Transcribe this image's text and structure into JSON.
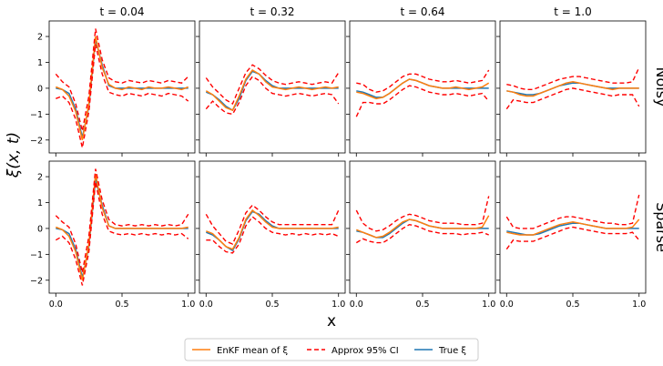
{
  "figure": {
    "xlabel": "x",
    "ylabel": "ξ(x, t)",
    "column_titles": [
      "t = 0.04",
      "t = 0.32",
      "t = 0.64",
      "t = 1.0"
    ],
    "row_labels": [
      "Noisy",
      "Sparse"
    ],
    "xticks": [
      0.0,
      0.5,
      1.0
    ],
    "xtick_labels": [
      "0.0",
      "0.5",
      "1.0"
    ],
    "yticks": [
      -2,
      -1,
      0,
      1,
      2
    ],
    "ytick_labels": [
      "−2",
      "−1",
      "0",
      "1",
      "2"
    ],
    "xlim": [
      -0.05,
      1.05
    ],
    "ylim": [
      -2.5,
      2.6
    ]
  },
  "legend": {
    "items": [
      {
        "key": "enkf",
        "label": "EnKF mean of ξ",
        "color": "#ff7f0e",
        "style": "solid"
      },
      {
        "key": "ci",
        "label": "Approx 95% CI",
        "color": "#ff0000",
        "style": "dashed"
      },
      {
        "key": "true",
        "label": "True ξ",
        "color": "#1f77b4",
        "style": "solid"
      }
    ]
  },
  "chart_data": {
    "type": "line",
    "x": [
      0.0,
      0.05,
      0.1,
      0.15,
      0.2,
      0.25,
      0.3,
      0.35,
      0.4,
      0.45,
      0.5,
      0.55,
      0.6,
      0.65,
      0.7,
      0.75,
      0.8,
      0.85,
      0.9,
      0.95,
      1.0
    ],
    "panels": [
      {
        "row": "Noisy",
        "t": "t = 0.04",
        "true": [
          0.0,
          -0.05,
          -0.2,
          -0.8,
          -1.9,
          -0.7,
          1.9,
          0.9,
          0.1,
          0.0,
          0.0,
          0.0,
          0.0,
          0.0,
          0.0,
          0.0,
          0.0,
          0.0,
          0.0,
          0.0,
          0.0
        ],
        "mean": [
          0.05,
          -0.05,
          -0.3,
          -0.9,
          -2.0,
          -0.6,
          2.0,
          0.8,
          0.15,
          0.0,
          -0.05,
          0.05,
          0.0,
          -0.05,
          0.05,
          0.0,
          0.0,
          0.05,
          0.0,
          -0.05,
          0.05
        ],
        "upper": [
          0.55,
          0.25,
          0.05,
          -0.6,
          -1.65,
          -0.3,
          2.3,
          1.1,
          0.4,
          0.25,
          0.2,
          0.3,
          0.25,
          0.2,
          0.3,
          0.25,
          0.2,
          0.3,
          0.25,
          0.2,
          0.45
        ],
        "lower": [
          -0.4,
          -0.3,
          -0.55,
          -1.2,
          -2.3,
          -0.9,
          1.7,
          0.55,
          -0.15,
          -0.25,
          -0.3,
          -0.2,
          -0.25,
          -0.3,
          -0.2,
          -0.25,
          -0.3,
          -0.2,
          -0.25,
          -0.3,
          -0.5
        ]
      },
      {
        "row": "Noisy",
        "t": "t = 0.32",
        "true": [
          -0.15,
          -0.25,
          -0.45,
          -0.7,
          -0.85,
          -0.4,
          0.3,
          0.65,
          0.55,
          0.3,
          0.1,
          0.0,
          0.0,
          0.0,
          0.0,
          0.0,
          0.0,
          0.0,
          0.0,
          0.0,
          0.0
        ],
        "mean": [
          -0.1,
          -0.25,
          -0.5,
          -0.75,
          -0.85,
          -0.3,
          0.35,
          0.7,
          0.55,
          0.25,
          0.05,
          0.0,
          -0.05,
          0.0,
          0.05,
          0.0,
          -0.05,
          0.0,
          0.05,
          0.0,
          0.05
        ],
        "upper": [
          0.4,
          0.05,
          -0.2,
          -0.45,
          -0.6,
          0.0,
          0.6,
          0.9,
          0.75,
          0.5,
          0.3,
          0.2,
          0.15,
          0.2,
          0.25,
          0.2,
          0.15,
          0.2,
          0.25,
          0.2,
          0.6
        ],
        "lower": [
          -0.8,
          -0.5,
          -0.75,
          -0.95,
          -1.0,
          -0.55,
          0.1,
          0.45,
          0.3,
          0.0,
          -0.2,
          -0.25,
          -0.3,
          -0.25,
          -0.2,
          -0.25,
          -0.3,
          -0.25,
          -0.2,
          -0.25,
          -0.6
        ]
      },
      {
        "row": "Noisy",
        "t": "t = 0.64",
        "true": [
          -0.1,
          -0.15,
          -0.25,
          -0.35,
          -0.35,
          -0.2,
          0.0,
          0.2,
          0.35,
          0.3,
          0.2,
          0.1,
          0.05,
          0.0,
          0.0,
          0.0,
          0.0,
          0.0,
          0.0,
          0.0,
          0.0
        ],
        "mean": [
          -0.15,
          -0.2,
          -0.3,
          -0.4,
          -0.35,
          -0.2,
          0.0,
          0.2,
          0.35,
          0.3,
          0.2,
          0.1,
          0.05,
          0.0,
          0.0,
          0.05,
          0.0,
          -0.05,
          0.0,
          0.05,
          0.2
        ],
        "upper": [
          0.2,
          0.15,
          -0.05,
          -0.15,
          -0.1,
          0.05,
          0.25,
          0.45,
          0.55,
          0.55,
          0.45,
          0.35,
          0.3,
          0.25,
          0.25,
          0.3,
          0.25,
          0.2,
          0.25,
          0.3,
          0.7
        ],
        "lower": [
          -1.1,
          -0.55,
          -0.55,
          -0.6,
          -0.6,
          -0.45,
          -0.25,
          -0.05,
          0.1,
          0.05,
          -0.05,
          -0.15,
          -0.2,
          -0.25,
          -0.25,
          -0.2,
          -0.25,
          -0.3,
          -0.25,
          -0.2,
          -0.5
        ]
      },
      {
        "row": "Noisy",
        "t": "t = 1.0",
        "true": [
          -0.1,
          -0.15,
          -0.2,
          -0.25,
          -0.25,
          -0.2,
          -0.1,
          0.0,
          0.1,
          0.15,
          0.2,
          0.2,
          0.15,
          0.1,
          0.05,
          0.0,
          0.0,
          0.0,
          0.0,
          0.0,
          0.0
        ],
        "mean": [
          -0.1,
          -0.15,
          -0.25,
          -0.3,
          -0.3,
          -0.2,
          -0.1,
          0.0,
          0.1,
          0.2,
          0.25,
          0.2,
          0.15,
          0.1,
          0.05,
          0.0,
          -0.05,
          0.0,
          0.0,
          0.0,
          0.0
        ],
        "upper": [
          0.15,
          0.1,
          0.0,
          -0.05,
          -0.05,
          0.05,
          0.15,
          0.25,
          0.35,
          0.4,
          0.45,
          0.45,
          0.4,
          0.35,
          0.3,
          0.25,
          0.2,
          0.2,
          0.2,
          0.25,
          0.8
        ],
        "lower": [
          -0.8,
          -0.45,
          -0.5,
          -0.55,
          -0.55,
          -0.45,
          -0.35,
          -0.25,
          -0.15,
          -0.05,
          0.0,
          -0.05,
          -0.1,
          -0.15,
          -0.2,
          -0.25,
          -0.3,
          -0.25,
          -0.25,
          -0.25,
          -0.7
        ]
      },
      {
        "row": "Sparse",
        "t": "t = 0.04",
        "true": [
          0.0,
          -0.05,
          -0.2,
          -0.8,
          -1.9,
          -0.7,
          1.9,
          0.9,
          0.1,
          0.0,
          0.0,
          0.0,
          0.0,
          0.0,
          0.0,
          0.0,
          0.0,
          0.0,
          0.0,
          0.0,
          0.0
        ],
        "mean": [
          0.05,
          -0.05,
          -0.3,
          -0.9,
          -2.0,
          -0.6,
          2.1,
          0.8,
          0.1,
          0.0,
          0.0,
          0.0,
          0.0,
          0.0,
          0.0,
          0.0,
          0.0,
          0.0,
          0.0,
          0.0,
          0.05
        ],
        "upper": [
          0.5,
          0.25,
          0.05,
          -0.6,
          -1.7,
          -0.3,
          2.3,
          1.1,
          0.35,
          0.15,
          0.1,
          0.15,
          0.1,
          0.15,
          0.1,
          0.15,
          0.1,
          0.15,
          0.1,
          0.15,
          0.55
        ],
        "lower": [
          -0.45,
          -0.3,
          -0.55,
          -1.2,
          -2.2,
          -0.9,
          1.8,
          0.55,
          -0.1,
          -0.2,
          -0.25,
          -0.2,
          -0.25,
          -0.2,
          -0.25,
          -0.2,
          -0.25,
          -0.2,
          -0.25,
          -0.2,
          -0.4
        ]
      },
      {
        "row": "Sparse",
        "t": "t = 0.32",
        "true": [
          -0.15,
          -0.25,
          -0.45,
          -0.7,
          -0.85,
          -0.4,
          0.3,
          0.65,
          0.55,
          0.3,
          0.1,
          0.0,
          0.0,
          0.0,
          0.0,
          0.0,
          0.0,
          0.0,
          0.0,
          0.0,
          0.0
        ],
        "mean": [
          -0.1,
          -0.2,
          -0.45,
          -0.7,
          -0.8,
          -0.35,
          0.35,
          0.7,
          0.5,
          0.25,
          0.05,
          0.0,
          0.0,
          0.0,
          0.0,
          0.0,
          0.0,
          0.0,
          0.0,
          0.0,
          0.05
        ],
        "upper": [
          0.55,
          0.1,
          -0.2,
          -0.5,
          -0.6,
          -0.05,
          0.6,
          0.9,
          0.7,
          0.45,
          0.25,
          0.15,
          0.15,
          0.15,
          0.15,
          0.15,
          0.15,
          0.15,
          0.15,
          0.15,
          0.7
        ],
        "lower": [
          -0.45,
          -0.45,
          -0.7,
          -0.9,
          -0.95,
          -0.6,
          0.1,
          0.45,
          0.25,
          0.0,
          -0.15,
          -0.2,
          -0.25,
          -0.2,
          -0.25,
          -0.2,
          -0.25,
          -0.2,
          -0.25,
          -0.2,
          -0.3
        ]
      },
      {
        "row": "Sparse",
        "t": "t = 0.64",
        "true": [
          -0.1,
          -0.15,
          -0.25,
          -0.35,
          -0.35,
          -0.2,
          0.0,
          0.2,
          0.35,
          0.3,
          0.2,
          0.1,
          0.05,
          0.0,
          0.0,
          0.0,
          0.0,
          0.0,
          0.0,
          0.0,
          0.0
        ],
        "mean": [
          -0.05,
          -0.15,
          -0.25,
          -0.35,
          -0.3,
          -0.15,
          0.05,
          0.25,
          0.35,
          0.3,
          0.2,
          0.1,
          0.05,
          0.0,
          0.0,
          0.0,
          0.0,
          0.0,
          0.0,
          0.05,
          0.5
        ],
        "upper": [
          0.7,
          0.2,
          0.0,
          -0.1,
          -0.05,
          0.1,
          0.3,
          0.45,
          0.55,
          0.5,
          0.4,
          0.3,
          0.25,
          0.2,
          0.2,
          0.2,
          0.15,
          0.15,
          0.15,
          0.2,
          1.25
        ],
        "lower": [
          -0.55,
          -0.4,
          -0.5,
          -0.55,
          -0.55,
          -0.4,
          -0.2,
          0.0,
          0.15,
          0.1,
          0.0,
          -0.1,
          -0.15,
          -0.2,
          -0.2,
          -0.2,
          -0.25,
          -0.2,
          -0.2,
          -0.15,
          -0.25
        ]
      },
      {
        "row": "Sparse",
        "t": "t = 1.0",
        "true": [
          -0.1,
          -0.15,
          -0.2,
          -0.25,
          -0.25,
          -0.2,
          -0.1,
          0.0,
          0.1,
          0.15,
          0.2,
          0.2,
          0.15,
          0.1,
          0.05,
          0.0,
          0.0,
          0.0,
          0.0,
          0.0,
          0.0
        ],
        "mean": [
          -0.15,
          -0.2,
          -0.25,
          -0.25,
          -0.25,
          -0.15,
          -0.05,
          0.05,
          0.15,
          0.2,
          0.25,
          0.2,
          0.15,
          0.1,
          0.05,
          0.0,
          0.0,
          0.0,
          0.0,
          0.05,
          0.35
        ],
        "upper": [
          0.45,
          0.05,
          0.0,
          0.0,
          0.0,
          0.1,
          0.2,
          0.3,
          0.4,
          0.45,
          0.45,
          0.4,
          0.35,
          0.3,
          0.25,
          0.2,
          0.2,
          0.15,
          0.15,
          0.2,
          1.3
        ],
        "lower": [
          -0.8,
          -0.45,
          -0.5,
          -0.5,
          -0.5,
          -0.4,
          -0.3,
          -0.2,
          -0.1,
          0.0,
          0.05,
          0.0,
          -0.05,
          -0.1,
          -0.15,
          -0.2,
          -0.2,
          -0.2,
          -0.2,
          -0.15,
          -0.45
        ]
      }
    ]
  }
}
